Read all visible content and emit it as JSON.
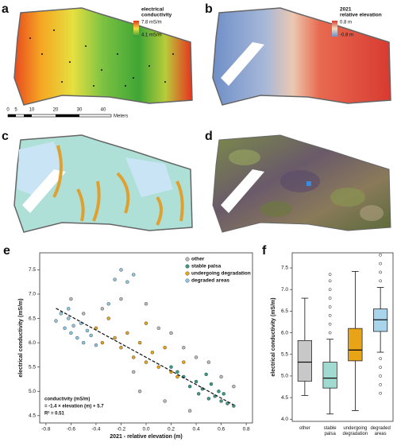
{
  "panels": {
    "a": {
      "label": "a",
      "legend_title": [
        "electrical",
        "conductivity"
      ],
      "legend_high": "7.8 mS/m",
      "legend_low": "4.1 mS/m",
      "scale_bar": [
        "0",
        "5",
        "10",
        "20",
        "30",
        "40",
        "Meters"
      ]
    },
    "b": {
      "label": "b",
      "legend_title": [
        "2021",
        "relative elevation"
      ],
      "legend_high": "0.8 m",
      "legend_low": "-0.8 m"
    },
    "c": {
      "label": "c"
    },
    "d": {
      "label": "d"
    }
  },
  "chart_data": [
    {
      "type": "scatter",
      "panel_label": "e",
      "x_label": "2021 - relative elevation (m)",
      "y_label": "electrical conductivity (mS/m)",
      "xlim": [
        -0.85,
        0.85
      ],
      "ylim": [
        4.35,
        7.85
      ],
      "xticks": [
        -0.8,
        -0.6,
        -0.4,
        -0.2,
        {
          "value": 0,
          "label": "0.0"
        },
        0.2,
        0.4,
        0.6,
        0.8
      ],
      "yticks": [
        4.5,
        {
          "value": 5,
          "label": "5.0"
        },
        5.5,
        {
          "value": 6,
          "label": "6.0"
        },
        6.5,
        {
          "value": 7,
          "label": "7.0"
        },
        7.5
      ],
      "legend": "upper right",
      "annotation": [
        "conductivity (mS/m)",
        "= -1.4 × elevation (m) + 5.7",
        "R² = 0.51"
      ],
      "fit": {
        "slope": -1.4,
        "intercept": 5.7
      },
      "series": [
        {
          "name": "other",
          "color": "#b9b9b9",
          "x": [
            -0.5,
            -0.35,
            -0.2,
            -0.1,
            0.0,
            0.1,
            0.2,
            0.3,
            0.4,
            0.5,
            0.6,
            -0.6,
            0.7,
            -0.05,
            0.15,
            0.35
          ],
          "y": [
            6.6,
            6.7,
            6.9,
            5.4,
            6.8,
            6.3,
            6.2,
            5.9,
            5.7,
            5.6,
            5.3,
            6.9,
            5.1,
            5.0,
            4.8,
            4.6
          ]
        },
        {
          "name": "stable palsa",
          "color": "#3a9a88",
          "x": [
            0.3,
            0.35,
            0.4,
            0.42,
            0.45,
            0.5,
            0.52,
            0.55,
            0.58,
            0.6,
            0.65,
            0.7,
            0.2,
            0.25,
            0.62,
            0.48
          ],
          "y": [
            5.3,
            5.1,
            5.2,
            4.95,
            5.05,
            4.85,
            5.15,
            4.9,
            5.0,
            4.8,
            4.75,
            4.7,
            5.5,
            5.4,
            4.95,
            5.35
          ]
        },
        {
          "name": "undergoing degradation",
          "color": "#e8a317",
          "x": [
            -0.4,
            -0.3,
            -0.25,
            -0.2,
            -0.15,
            -0.1,
            -0.05,
            0.0,
            0.05,
            0.1,
            0.15,
            0.2,
            0.25,
            0.3,
            -0.35,
            0.0
          ],
          "y": [
            6.3,
            6.5,
            6.1,
            5.9,
            6.2,
            5.7,
            6.0,
            5.6,
            5.8,
            5.5,
            5.9,
            5.4,
            5.3,
            5.6,
            6.0,
            6.4
          ]
        },
        {
          "name": "degraded areas",
          "color": "#8cc7e0",
          "x": [
            -0.72,
            -0.68,
            -0.65,
            -0.62,
            -0.6,
            -0.58,
            -0.55,
            -0.52,
            -0.5,
            -0.47,
            -0.44,
            -0.4,
            -0.25,
            -0.2,
            -0.15,
            -0.1,
            -0.3,
            -0.62
          ],
          "y": [
            6.45,
            6.6,
            6.3,
            6.5,
            6.2,
            6.35,
            6.1,
            6.4,
            6.0,
            6.25,
            6.15,
            5.95,
            7.3,
            7.5,
            7.25,
            7.4,
            6.8,
            6.7
          ]
        }
      ]
    },
    {
      "type": "box",
      "panel_label": "f",
      "y_label": "electrical conductivity (mS/m)",
      "ylim": [
        3.95,
        7.85
      ],
      "yticks": [
        {
          "value": 4,
          "label": "4.0"
        },
        4.5,
        {
          "value": 5,
          "label": "5.0"
        },
        5.5,
        {
          "value": 6,
          "label": "6.0"
        },
        6.5,
        {
          "value": 7,
          "label": "7.0"
        },
        7.5
      ],
      "categories": [
        "other",
        "stable\npalsa",
        "undergoing\ndegradation",
        "degraded\nareas"
      ],
      "colors": [
        "#c8c8c8",
        "#a0dad0",
        "#e8a317",
        "#a8d4ec"
      ],
      "boxes": [
        {
          "whislo": 4.55,
          "q1": 4.88,
          "med": 5.32,
          "q3": 5.82,
          "whishi": 6.8,
          "fliers": []
        },
        {
          "whislo": 4.12,
          "q1": 4.72,
          "med": 4.95,
          "q3": 5.32,
          "whishi": 5.85,
          "fliers": [
            6.0,
            6.2,
            6.4,
            6.6,
            6.8,
            7.0,
            7.2,
            7.35
          ]
        },
        {
          "whislo": 4.2,
          "q1": 5.35,
          "med": 5.6,
          "q3": 6.1,
          "whishi": 7.42,
          "fliers": []
        },
        {
          "whislo": 5.55,
          "q1": 6.03,
          "med": 6.3,
          "q3": 6.55,
          "whishi": 7.05,
          "fliers": [
            4.6,
            4.8,
            5.0,
            5.2,
            5.4,
            7.2,
            7.4,
            7.6,
            7.8
          ]
        }
      ]
    }
  ]
}
